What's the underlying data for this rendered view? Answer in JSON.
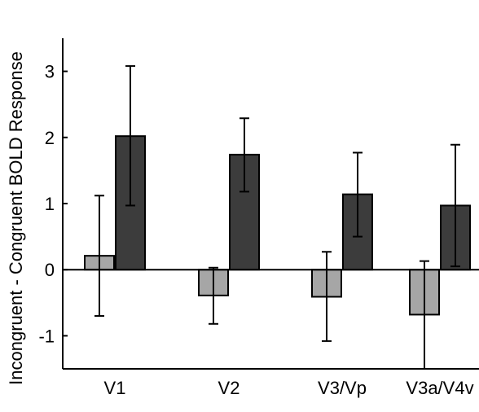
{
  "chart_data": {
    "type": "bar",
    "title": "",
    "xlabel": "",
    "ylabel": "Incongruent - Congruent BOLD Response",
    "categories": [
      "V1",
      "V2",
      "V3/Vp",
      "V3a/V4v"
    ],
    "ylim": [
      -1.5,
      3.5
    ],
    "yticks": [
      -1,
      0,
      1,
      2,
      3
    ],
    "grid": false,
    "legend": "none",
    "series": [
      {
        "color": "#a6a6a6",
        "values": [
          0.21,
          -0.39,
          -0.41,
          -0.68
        ],
        "err_low": [
          -0.7,
          -0.82,
          -1.08,
          -1.5
        ],
        "err_high": [
          1.12,
          0.03,
          0.27,
          0.13
        ]
      },
      {
        "color": "#3c3c3c",
        "values": [
          2.02,
          1.74,
          1.14,
          0.97
        ],
        "err_low": [
          0.97,
          1.18,
          0.5,
          0.05
        ],
        "err_high": [
          3.08,
          2.29,
          1.77,
          1.89
        ]
      }
    ]
  }
}
